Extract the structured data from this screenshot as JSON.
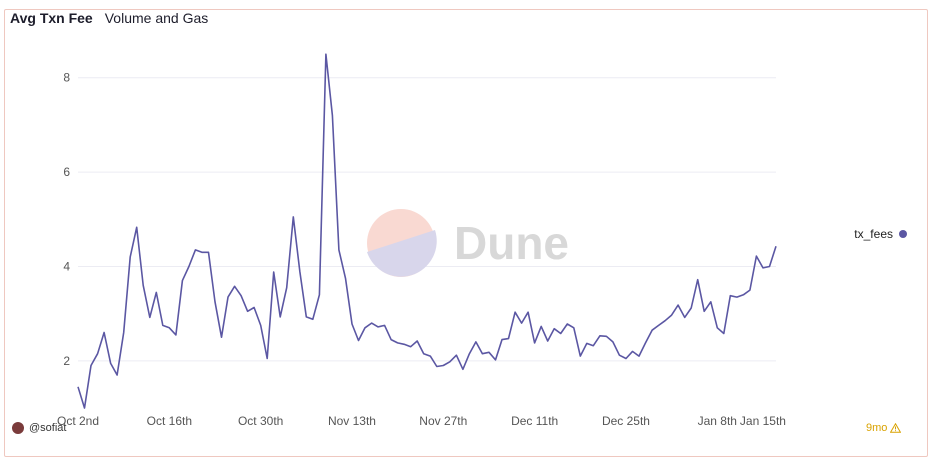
{
  "header": {
    "title": "Avg Txn Fee",
    "subtitle": "Volume and Gas"
  },
  "footer": {
    "username": "@sofiat",
    "age_badge": "9mo",
    "warning_icon": "warning-triangle-icon"
  },
  "watermark": {
    "text": "Dune"
  },
  "colors": {
    "line": "#5b57a3",
    "grid": "#ececf3",
    "watermark_top": "#f9d9d2",
    "watermark_bottom": "#d8d6eb",
    "watermark_text": "#d8d8d8"
  },
  "chart_data": {
    "type": "line",
    "x_start": "2023-10-02",
    "x_ticks": [
      "Oct 2nd",
      "Oct 16th",
      "Oct 30th",
      "Nov 13th",
      "Nov 27th",
      "Dec 11th",
      "Dec 25th",
      "Jan 8th",
      "Jan 15th"
    ],
    "y_ticks": [
      "2",
      "4",
      "6",
      "8"
    ],
    "ylim": [
      1,
      8.8
    ],
    "grid": true,
    "legend_position": "right",
    "series": [
      {
        "name": "tx_fees",
        "color": "#5b57a3",
        "values": [
          1.45,
          1.0,
          1.9,
          2.15,
          2.6,
          1.95,
          1.7,
          2.6,
          4.2,
          4.83,
          3.6,
          2.92,
          3.45,
          2.75,
          2.7,
          2.55,
          3.7,
          4.0,
          4.35,
          4.3,
          4.3,
          3.25,
          2.5,
          3.35,
          3.58,
          3.38,
          3.05,
          3.13,
          2.75,
          2.05,
          3.88,
          2.93,
          3.55,
          5.05,
          3.9,
          2.93,
          2.88,
          3.4,
          8.5,
          7.2,
          4.35,
          3.75,
          2.78,
          2.43,
          2.7,
          2.8,
          2.72,
          2.75,
          2.45,
          2.38,
          2.35,
          2.3,
          2.42,
          2.15,
          2.1,
          1.88,
          1.9,
          1.98,
          2.12,
          1.82,
          2.15,
          2.4,
          2.15,
          2.18,
          2.02,
          2.45,
          2.47,
          3.03,
          2.8,
          3.03,
          2.38,
          2.73,
          2.42,
          2.68,
          2.58,
          2.78,
          2.7,
          2.1,
          2.37,
          2.32,
          2.53,
          2.52,
          2.4,
          2.12,
          2.05,
          2.2,
          2.1,
          2.38,
          2.65,
          2.75,
          2.85,
          2.97,
          3.18,
          2.92,
          3.12,
          3.72,
          3.05,
          3.25,
          2.7,
          2.58,
          3.38,
          3.35,
          3.4,
          3.5,
          4.22,
          3.97,
          4.0,
          4.43
        ]
      }
    ]
  }
}
